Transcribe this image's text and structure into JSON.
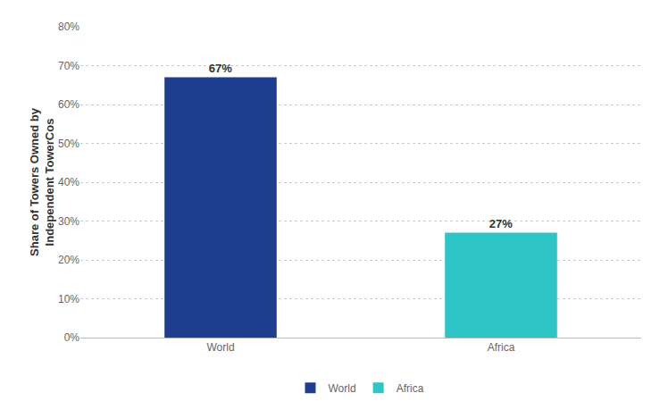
{
  "chart_data": {
    "type": "bar",
    "ylabel": "Share of Towers Owned by\nIndependent TowerCos",
    "categories": [
      "World",
      "Africa"
    ],
    "values": [
      67,
      27
    ],
    "value_labels": [
      "67%",
      "27%"
    ],
    "colors": [
      "#1e3f8f",
      "#2dc5c5"
    ],
    "ylim": [
      0,
      80
    ],
    "yticks": [
      {
        "value": 0,
        "label": "0%"
      },
      {
        "value": 10,
        "label": "10%"
      },
      {
        "value": 20,
        "label": "20%"
      },
      {
        "value": 30,
        "label": "30%"
      },
      {
        "value": 40,
        "label": "40%"
      },
      {
        "value": 50,
        "label": "50%"
      },
      {
        "value": 60,
        "label": "60%"
      },
      {
        "value": 70,
        "label": "70%"
      },
      {
        "value": 80,
        "label": "80%"
      }
    ],
    "grid": true,
    "legend": "bottom",
    "data_labels": true
  }
}
